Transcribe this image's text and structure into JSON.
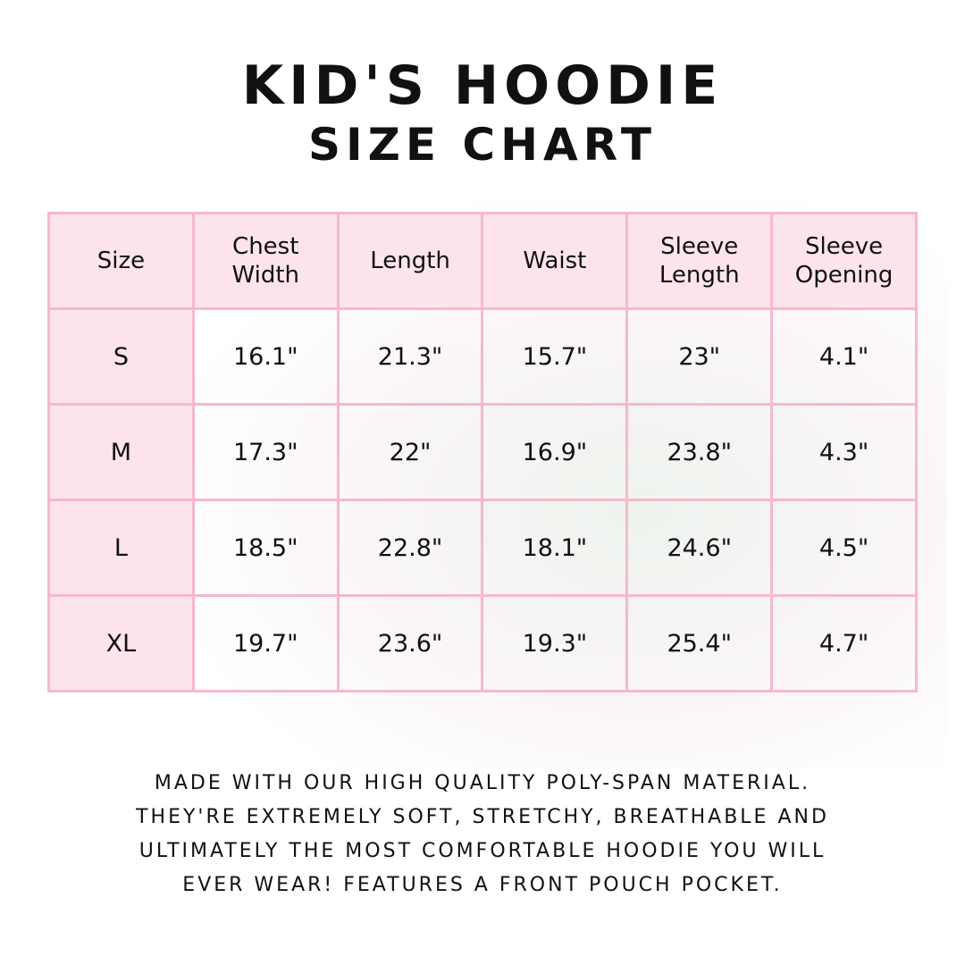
{
  "title": {
    "line1": "Kid's Hoodie",
    "line2": "Size Chart"
  },
  "table": {
    "headers": [
      "Size",
      "Chest Width",
      "Length",
      "Waist",
      "Sleeve Length",
      "Sleeve Opening"
    ],
    "rows": [
      [
        "S",
        "16.1\"",
        "21.3\"",
        "15.7\"",
        "23\"",
        "4.1\""
      ],
      [
        "M",
        "17.3\"",
        "22\"",
        "16.9\"",
        "23.8\"",
        "4.3\""
      ],
      [
        "L",
        "18.5\"",
        "22.8\"",
        "18.1\"",
        "24.6\"",
        "4.5\""
      ],
      [
        "XL",
        "19.7\"",
        "23.6\"",
        "19.3\"",
        "25.4\"",
        "4.7\""
      ]
    ]
  },
  "description": [
    "Made with our high quality poly-span material.",
    "They're extremely soft, stretchy, breathable and",
    "ultimately the most comfortable hoodie you will",
    "ever wear! Features a front pouch pocket."
  ],
  "colors": {
    "border": "#f6b8cc",
    "header_bg": "#fde4ec"
  }
}
